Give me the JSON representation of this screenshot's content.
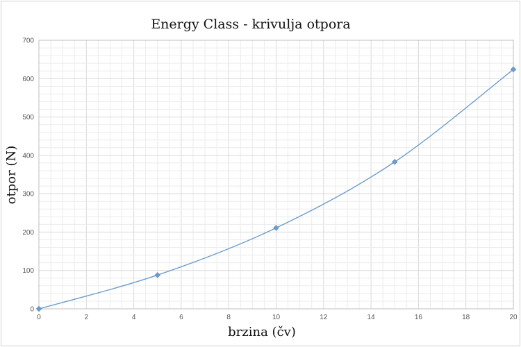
{
  "chart_data": {
    "type": "scatter",
    "title": "Energy Class - krivulja otpora",
    "xlabel": "brzina (čv)",
    "ylabel": "otpor (N)",
    "xlim": [
      0,
      20
    ],
    "ylim": [
      0,
      700
    ],
    "x_ticks": [
      0,
      2,
      4,
      6,
      8,
      10,
      12,
      14,
      16,
      18,
      20
    ],
    "y_ticks": [
      0,
      100,
      200,
      300,
      400,
      500,
      600,
      700
    ],
    "x_minor_step": 0.5,
    "y_minor_step": 20,
    "grid": true,
    "legend": "none",
    "line": "smooth",
    "colors": {
      "series": "#6e9ccd",
      "grid_major": "#d9d9d9",
      "grid_minor": "#ececec",
      "frame": "#bfbfbf"
    },
    "series": [
      {
        "x": [
          0,
          5,
          10,
          15,
          20
        ],
        "y": [
          0,
          88,
          211,
          383,
          624
        ]
      }
    ]
  }
}
